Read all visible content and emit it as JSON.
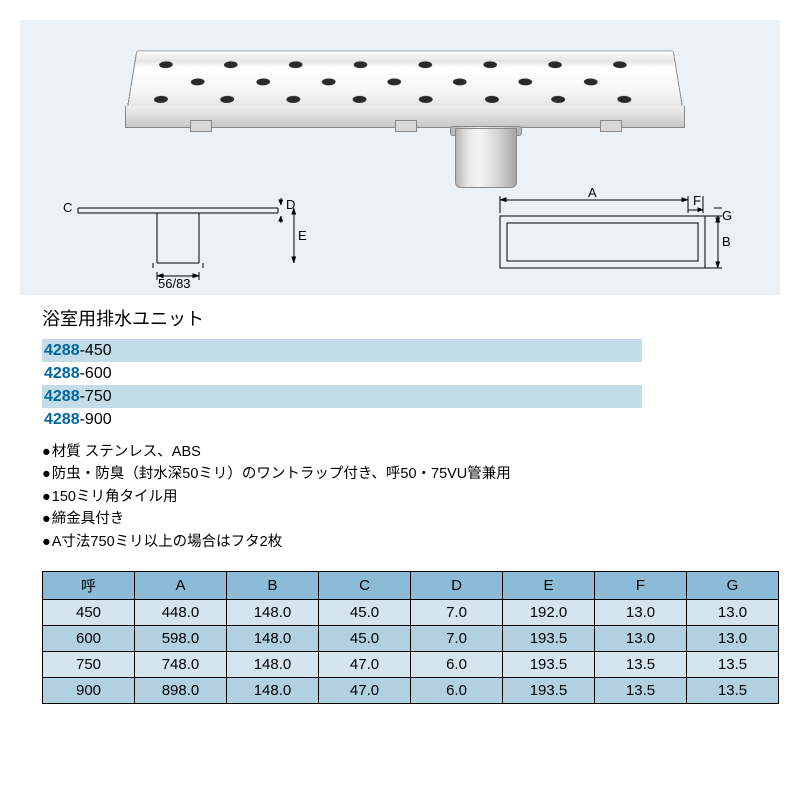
{
  "diagram": {
    "section_label_C": "C",
    "section_label_D": "D",
    "section_label_E": "E",
    "section_dim": "56/83",
    "plan_label_A": "A",
    "plan_label_B": "B",
    "plan_label_F": "F",
    "plan_label_G": "G"
  },
  "title": "浴室用排水ユニット",
  "models": [
    {
      "num": "4288",
      "suffix": "-450",
      "shaded": true
    },
    {
      "num": "4288",
      "suffix": "-600",
      "shaded": false
    },
    {
      "num": "4288",
      "suffix": "-750",
      "shaded": true
    },
    {
      "num": "4288",
      "suffix": "-900",
      "shaded": false
    }
  ],
  "bullets": [
    "材質 ステンレス、ABS",
    "防虫・防臭（封水深50ミリ）のワントラップ付き、呼50・75VU管兼用",
    "150ミリ角タイル用",
    "締金具付き",
    "A寸法750ミリ以上の場合はフタ2枚"
  ],
  "table": {
    "headers": [
      "呼",
      "A",
      "B",
      "C",
      "D",
      "E",
      "F",
      "G"
    ],
    "rows": [
      [
        "450",
        "448.0",
        "148.0",
        "45.0",
        "7.0",
        "192.0",
        "13.0",
        "13.0"
      ],
      [
        "600",
        "598.0",
        "148.0",
        "45.0",
        "7.0",
        "193.5",
        "13.0",
        "13.0"
      ],
      [
        "750",
        "748.0",
        "148.0",
        "47.0",
        "6.0",
        "193.5",
        "13.5",
        "13.5"
      ],
      [
        "900",
        "898.0",
        "148.0",
        "47.0",
        "6.0",
        "193.5",
        "13.5",
        "13.5"
      ]
    ]
  },
  "colors": {
    "diagram_bg": "#eaf1f7",
    "model_accent": "#0066a0",
    "model_shade": "#c2dce8",
    "table_header": "#8bbbd6",
    "table_row_light": "#d4e5ee",
    "table_row_dark": "#b1d0e0"
  }
}
